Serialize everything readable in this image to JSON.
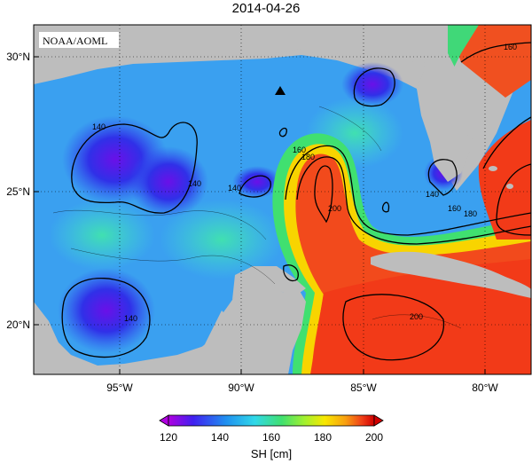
{
  "map": {
    "title": "2014-04-26",
    "agency_label": "NOAA/AOML",
    "lat_labels": [
      "30°N",
      "25°N",
      "20°N"
    ],
    "lon_labels": [
      "95°W",
      "90°W",
      "85°W",
      "80°W"
    ],
    "contour_labels": [
      "140",
      "140",
      "140",
      "140",
      "140",
      "160",
      "180",
      "160",
      "180",
      "200",
      "200",
      "160"
    ],
    "marker": "triangle",
    "colors": {
      "land": "#bdbdbd",
      "ocean_low": "#2030e0",
      "ocean_mid": "#30c8e8",
      "ocean_high": "#f23a18"
    }
  },
  "colorbar": {
    "ticks": [
      "120",
      "140",
      "160",
      "180",
      "200"
    ],
    "label": "SH [cm]",
    "colors": [
      "#b000e0",
      "#4020f0",
      "#2090f0",
      "#30d8e8",
      "#40e070",
      "#a0f030",
      "#f8e800",
      "#f8a010",
      "#f04018",
      "#d00000"
    ]
  }
}
